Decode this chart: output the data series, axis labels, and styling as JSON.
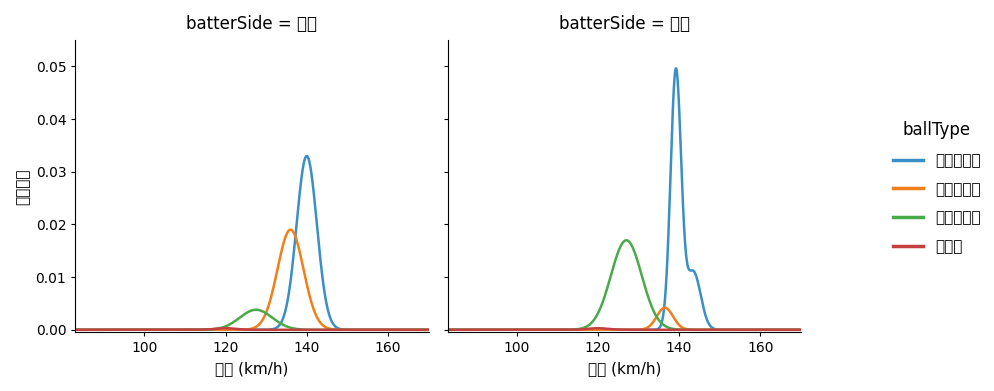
{
  "title_left": "batterSide = 右打",
  "title_right": "batterSide = 左打",
  "xlabel": "球速 (km/h)",
  "ylabel": "確率密度",
  "legend_title": "ballType",
  "legend_entries": [
    "ストレート",
    "ツーシーム",
    "スライダー",
    "カーブ"
  ],
  "colors": [
    "#3a8fc4",
    "#f07f1a",
    "#4aaa4a",
    "#c44040"
  ],
  "xlim": [
    83,
    170
  ],
  "ylim": [
    -0.0005,
    0.055
  ],
  "yticks": [
    0.0,
    0.01,
    0.02,
    0.03,
    0.04,
    0.05
  ],
  "xticks": [
    100,
    120,
    140,
    160
  ],
  "background_color": "#ffffff",
  "curves": {
    "left": {
      "straight": {
        "mean": 140.0,
        "std": 2.5,
        "peak": 0.033
      },
      "two_seam": {
        "mean": 136.0,
        "std": 3.2,
        "peak": 0.019
      },
      "slider": {
        "mean": 127.5,
        "std": 4.0,
        "peak": 0.0038
      },
      "curve": {
        "mean": 120.0,
        "std": 2.5,
        "peak": 0.0003
      }
    },
    "right": {
      "straight": {
        "mean": 139.2,
        "std": 1.3,
        "peak": 0.049
      },
      "straight_bump": {
        "mean": 143.5,
        "std": 1.8,
        "peak": 0.011
      },
      "two_seam": {
        "mean": 136.5,
        "std": 2.0,
        "peak": 0.0042
      },
      "slider": {
        "mean": 127.0,
        "std": 3.8,
        "peak": 0.017
      },
      "curve": {
        "mean": 120.0,
        "std": 2.5,
        "peak": 0.0003
      }
    }
  }
}
